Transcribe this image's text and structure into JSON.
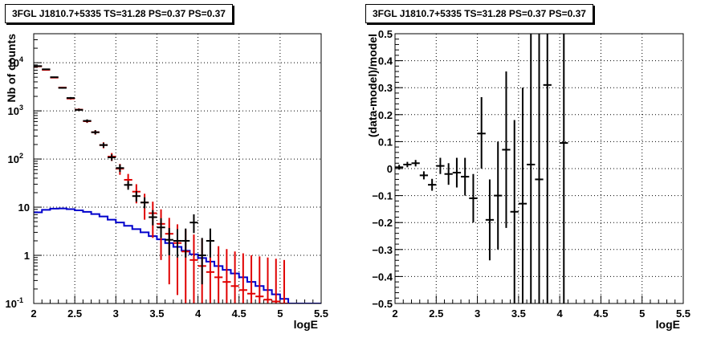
{
  "panels": [
    {
      "title": "3FGL J1810.7+5335 TS=31.28 PS=0.37 PS=0.37"
    },
    {
      "title": "3FGL J1810.7+5335 TS=31.28 PS=0.37 PS=0.37"
    }
  ],
  "colors": {
    "data": "#000000",
    "model_points": "#e00000",
    "model_hist": "#0000cc",
    "grid": "#000000"
  },
  "chart_data": [
    {
      "type": "scatter",
      "title": "3FGL J1810.7+5335 TS=31.28 PS=0.37 PS=0.37",
      "xlabel": "logE",
      "ylabel": "Nb of counts",
      "xlim": [
        2,
        5.5
      ],
      "ylim": [
        0.1,
        40000
      ],
      "ylog": true,
      "grid": true,
      "xticks": [
        "2",
        "2.5",
        "3",
        "3.5",
        "4",
        "4.5",
        "5",
        "5.5"
      ],
      "yticks": [
        {
          "v": 0.1,
          "base": "10",
          "exp": "-1"
        },
        {
          "v": 1,
          "base": "1",
          "exp": ""
        },
        {
          "v": 10,
          "base": "10",
          "exp": ""
        },
        {
          "v": 100,
          "base": "10",
          "exp": "2"
        },
        {
          "v": 1000,
          "base": "10",
          "exp": "3"
        },
        {
          "v": 10000,
          "base": "10",
          "exp": "4"
        }
      ],
      "bin_halfwidth": 0.05,
      "data_points": [
        {
          "x": 2.05,
          "y": 8500,
          "lo": 8300,
          "hi": 8700
        },
        {
          "x": 2.15,
          "y": 7300,
          "lo": 7130,
          "hi": 7470
        },
        {
          "x": 2.25,
          "y": 5000,
          "lo": 4860,
          "hi": 5140
        },
        {
          "x": 2.35,
          "y": 3000,
          "lo": 2890,
          "hi": 3110
        },
        {
          "x": 2.45,
          "y": 1850,
          "lo": 1765,
          "hi": 1935
        },
        {
          "x": 2.55,
          "y": 1050,
          "lo": 990,
          "hi": 1110
        },
        {
          "x": 2.65,
          "y": 620,
          "lo": 575,
          "hi": 665
        },
        {
          "x": 2.75,
          "y": 360,
          "lo": 325,
          "hi": 395
        },
        {
          "x": 2.85,
          "y": 195,
          "lo": 172,
          "hi": 218
        },
        {
          "x": 2.95,
          "y": 108,
          "lo": 92,
          "hi": 125
        },
        {
          "x": 3.05,
          "y": 65,
          "lo": 54,
          "hi": 77
        },
        {
          "x": 3.15,
          "y": 29,
          "lo": 23,
          "hi": 35
        },
        {
          "x": 3.25,
          "y": 17,
          "lo": 13,
          "hi": 21.5
        },
        {
          "x": 3.35,
          "y": 12.5,
          "lo": 9.5,
          "hi": 16
        },
        {
          "x": 3.45,
          "y": 6.2,
          "lo": 4.2,
          "hi": 8.7
        },
        {
          "x": 3.55,
          "y": 3.8,
          "lo": 2.3,
          "hi": 5.9
        },
        {
          "x": 3.65,
          "y": 2.1,
          "lo": 1.0,
          "hi": 3.7
        },
        {
          "x": 3.75,
          "y": 2.0,
          "lo": 0.9,
          "hi": 3.5
        },
        {
          "x": 3.85,
          "y": 2.0,
          "lo": 0.9,
          "hi": 3.6
        },
        {
          "x": 3.95,
          "y": 4.8,
          "lo": 2.9,
          "hi": 7.1
        },
        {
          "x": 4.05,
          "y": 1.0,
          "lo": 0.25,
          "hi": 2.3
        },
        {
          "x": 4.15,
          "y": 2.0,
          "lo": 0.9,
          "hi": 3.6
        }
      ],
      "model_points": [
        {
          "x": 2.05,
          "y": 8400,
          "lo": 8210,
          "hi": 8590
        },
        {
          "x": 2.15,
          "y": 7100,
          "lo": 6930,
          "hi": 7270
        },
        {
          "x": 2.25,
          "y": 4900,
          "lo": 4760,
          "hi": 5040
        },
        {
          "x": 2.35,
          "y": 3050,
          "lo": 2940,
          "hi": 3160
        },
        {
          "x": 2.45,
          "y": 1800,
          "lo": 1715,
          "hi": 1885
        },
        {
          "x": 2.55,
          "y": 1060,
          "lo": 995,
          "hi": 1125
        },
        {
          "x": 2.65,
          "y": 610,
          "lo": 561,
          "hi": 659
        },
        {
          "x": 2.75,
          "y": 360,
          "lo": 322,
          "hi": 398
        },
        {
          "x": 2.85,
          "y": 195,
          "lo": 167,
          "hi": 223
        },
        {
          "x": 2.95,
          "y": 112,
          "lo": 91,
          "hi": 133
        },
        {
          "x": 3.05,
          "y": 63,
          "lo": 47,
          "hi": 79
        },
        {
          "x": 3.15,
          "y": 37,
          "lo": 25,
          "hi": 49
        },
        {
          "x": 3.25,
          "y": 21,
          "lo": 12,
          "hi": 30
        },
        {
          "x": 3.35,
          "y": 12.5,
          "lo": 5.5,
          "hi": 19
        },
        {
          "x": 3.45,
          "y": 7.5,
          "lo": 2.3,
          "hi": 13
        },
        {
          "x": 3.55,
          "y": 4.5,
          "lo": 0.8,
          "hi": 9
        },
        {
          "x": 3.65,
          "y": 2.8,
          "lo": 0.25,
          "hi": 6
        },
        {
          "x": 3.75,
          "y": 1.8,
          "lo": 0.15,
          "hi": 4.4
        },
        {
          "x": 3.85,
          "y": 1.2,
          "lo": 0.1,
          "hi": 3.4
        },
        {
          "x": 3.95,
          "y": 0.8,
          "lo": 0.1,
          "hi": 2.7
        },
        {
          "x": 4.05,
          "y": 0.6,
          "lo": 0.1,
          "hi": 2.2
        },
        {
          "x": 4.15,
          "y": 0.45,
          "lo": 0.1,
          "hi": 1.8
        },
        {
          "x": 4.25,
          "y": 0.35,
          "lo": 0.1,
          "hi": 1.55
        },
        {
          "x": 4.35,
          "y": 0.28,
          "lo": 0.1,
          "hi": 1.35
        },
        {
          "x": 4.45,
          "y": 0.23,
          "lo": 0.1,
          "hi": 1.2
        },
        {
          "x": 4.55,
          "y": 0.19,
          "lo": 0.1,
          "hi": 1.1
        },
        {
          "x": 4.65,
          "y": 0.16,
          "lo": 0.1,
          "hi": 1.0
        },
        {
          "x": 4.75,
          "y": 0.14,
          "lo": 0.1,
          "hi": 0.95
        },
        {
          "x": 4.85,
          "y": 0.12,
          "lo": 0.1,
          "hi": 0.9
        },
        {
          "x": 4.95,
          "y": 0.11,
          "lo": 0.1,
          "hi": 0.85
        },
        {
          "x": 5.05,
          "y": 0.1,
          "lo": 0.1,
          "hi": 0.8
        }
      ],
      "model_hist": {
        "edges": [
          2.0,
          2.1,
          2.2,
          2.3,
          2.4,
          2.5,
          2.6,
          2.7,
          2.8,
          2.9,
          3.0,
          3.1,
          3.2,
          3.3,
          3.4,
          3.5,
          3.6,
          3.7,
          3.8,
          3.9,
          4.0,
          4.1,
          4.2,
          4.3,
          4.4,
          4.5,
          4.6,
          4.7,
          4.8,
          4.9,
          5.0,
          5.1,
          5.2,
          5.3,
          5.4,
          5.5
        ],
        "values": [
          7.8,
          8.8,
          9.3,
          9.4,
          9.1,
          8.6,
          8.0,
          7.2,
          6.4,
          5.5,
          4.8,
          4.1,
          3.5,
          3.0,
          2.5,
          2.15,
          1.8,
          1.5,
          1.25,
          1.05,
          0.88,
          0.74,
          0.6,
          0.5,
          0.42,
          0.35,
          0.28,
          0.23,
          0.19,
          0.155,
          0.125,
          0.1,
          0.1,
          0.1,
          0.1
        ]
      }
    },
    {
      "type": "scatter",
      "title": "3FGL J1810.7+5335 TS=31.28 PS=0.37 PS=0.37",
      "xlabel": "logE",
      "ylabel": "(data-model)/model",
      "xlim": [
        2,
        5.5
      ],
      "ylim": [
        -0.5,
        0.5
      ],
      "grid": true,
      "xticks": [
        "2",
        "2.5",
        "3",
        "3.5",
        "4",
        "4.5",
        "5",
        "5.5"
      ],
      "yticks": [
        "-0.5",
        "-0.4",
        "-0.3",
        "-0.2",
        "-0.1",
        "0",
        "0.1",
        "0.2",
        "0.3",
        "0.4",
        "0.5"
      ],
      "bin_halfwidth": 0.05,
      "residuals": [
        {
          "x": 2.05,
          "y": 0.005,
          "lo": -0.004,
          "hi": 0.014
        },
        {
          "x": 2.15,
          "y": 0.015,
          "lo": 0.005,
          "hi": 0.025
        },
        {
          "x": 2.25,
          "y": 0.02,
          "lo": 0.008,
          "hi": 0.032
        },
        {
          "x": 2.35,
          "y": -0.025,
          "lo": -0.04,
          "hi": -0.01
        },
        {
          "x": 2.45,
          "y": -0.06,
          "lo": -0.082,
          "hi": -0.038
        },
        {
          "x": 2.55,
          "y": 0.01,
          "lo": -0.02,
          "hi": 0.04
        },
        {
          "x": 2.65,
          "y": -0.02,
          "lo": -0.06,
          "hi": 0.02
        },
        {
          "x": 2.75,
          "y": -0.015,
          "lo": -0.07,
          "hi": 0.04
        },
        {
          "x": 2.85,
          "y": -0.03,
          "lo": -0.1,
          "hi": 0.04
        },
        {
          "x": 2.95,
          "y": -0.11,
          "lo": -0.2,
          "hi": -0.02
        },
        {
          "x": 3.05,
          "y": 0.13,
          "lo": 0.0,
          "hi": 0.265
        },
        {
          "x": 3.15,
          "y": -0.19,
          "lo": -0.34,
          "hi": -0.04
        },
        {
          "x": 3.25,
          "y": -0.1,
          "lo": -0.3,
          "hi": 0.1
        },
        {
          "x": 3.35,
          "y": 0.07,
          "lo": -0.22,
          "hi": 0.36
        },
        {
          "x": 3.45,
          "y": -0.16,
          "lo": -0.5,
          "hi": 0.18
        },
        {
          "x": 3.55,
          "y": -0.13,
          "lo": -0.5,
          "hi": 0.3
        },
        {
          "x": 3.65,
          "y": 0.015,
          "lo": -0.5,
          "hi": 0.5
        },
        {
          "x": 3.75,
          "y": -0.04,
          "lo": -0.5,
          "hi": 0.5
        },
        {
          "x": 3.85,
          "y": 0.31,
          "lo": -0.5,
          "hi": 0.5
        },
        {
          "x": 4.05,
          "y": 0.095,
          "lo": -0.5,
          "hi": 0.5
        }
      ]
    }
  ]
}
